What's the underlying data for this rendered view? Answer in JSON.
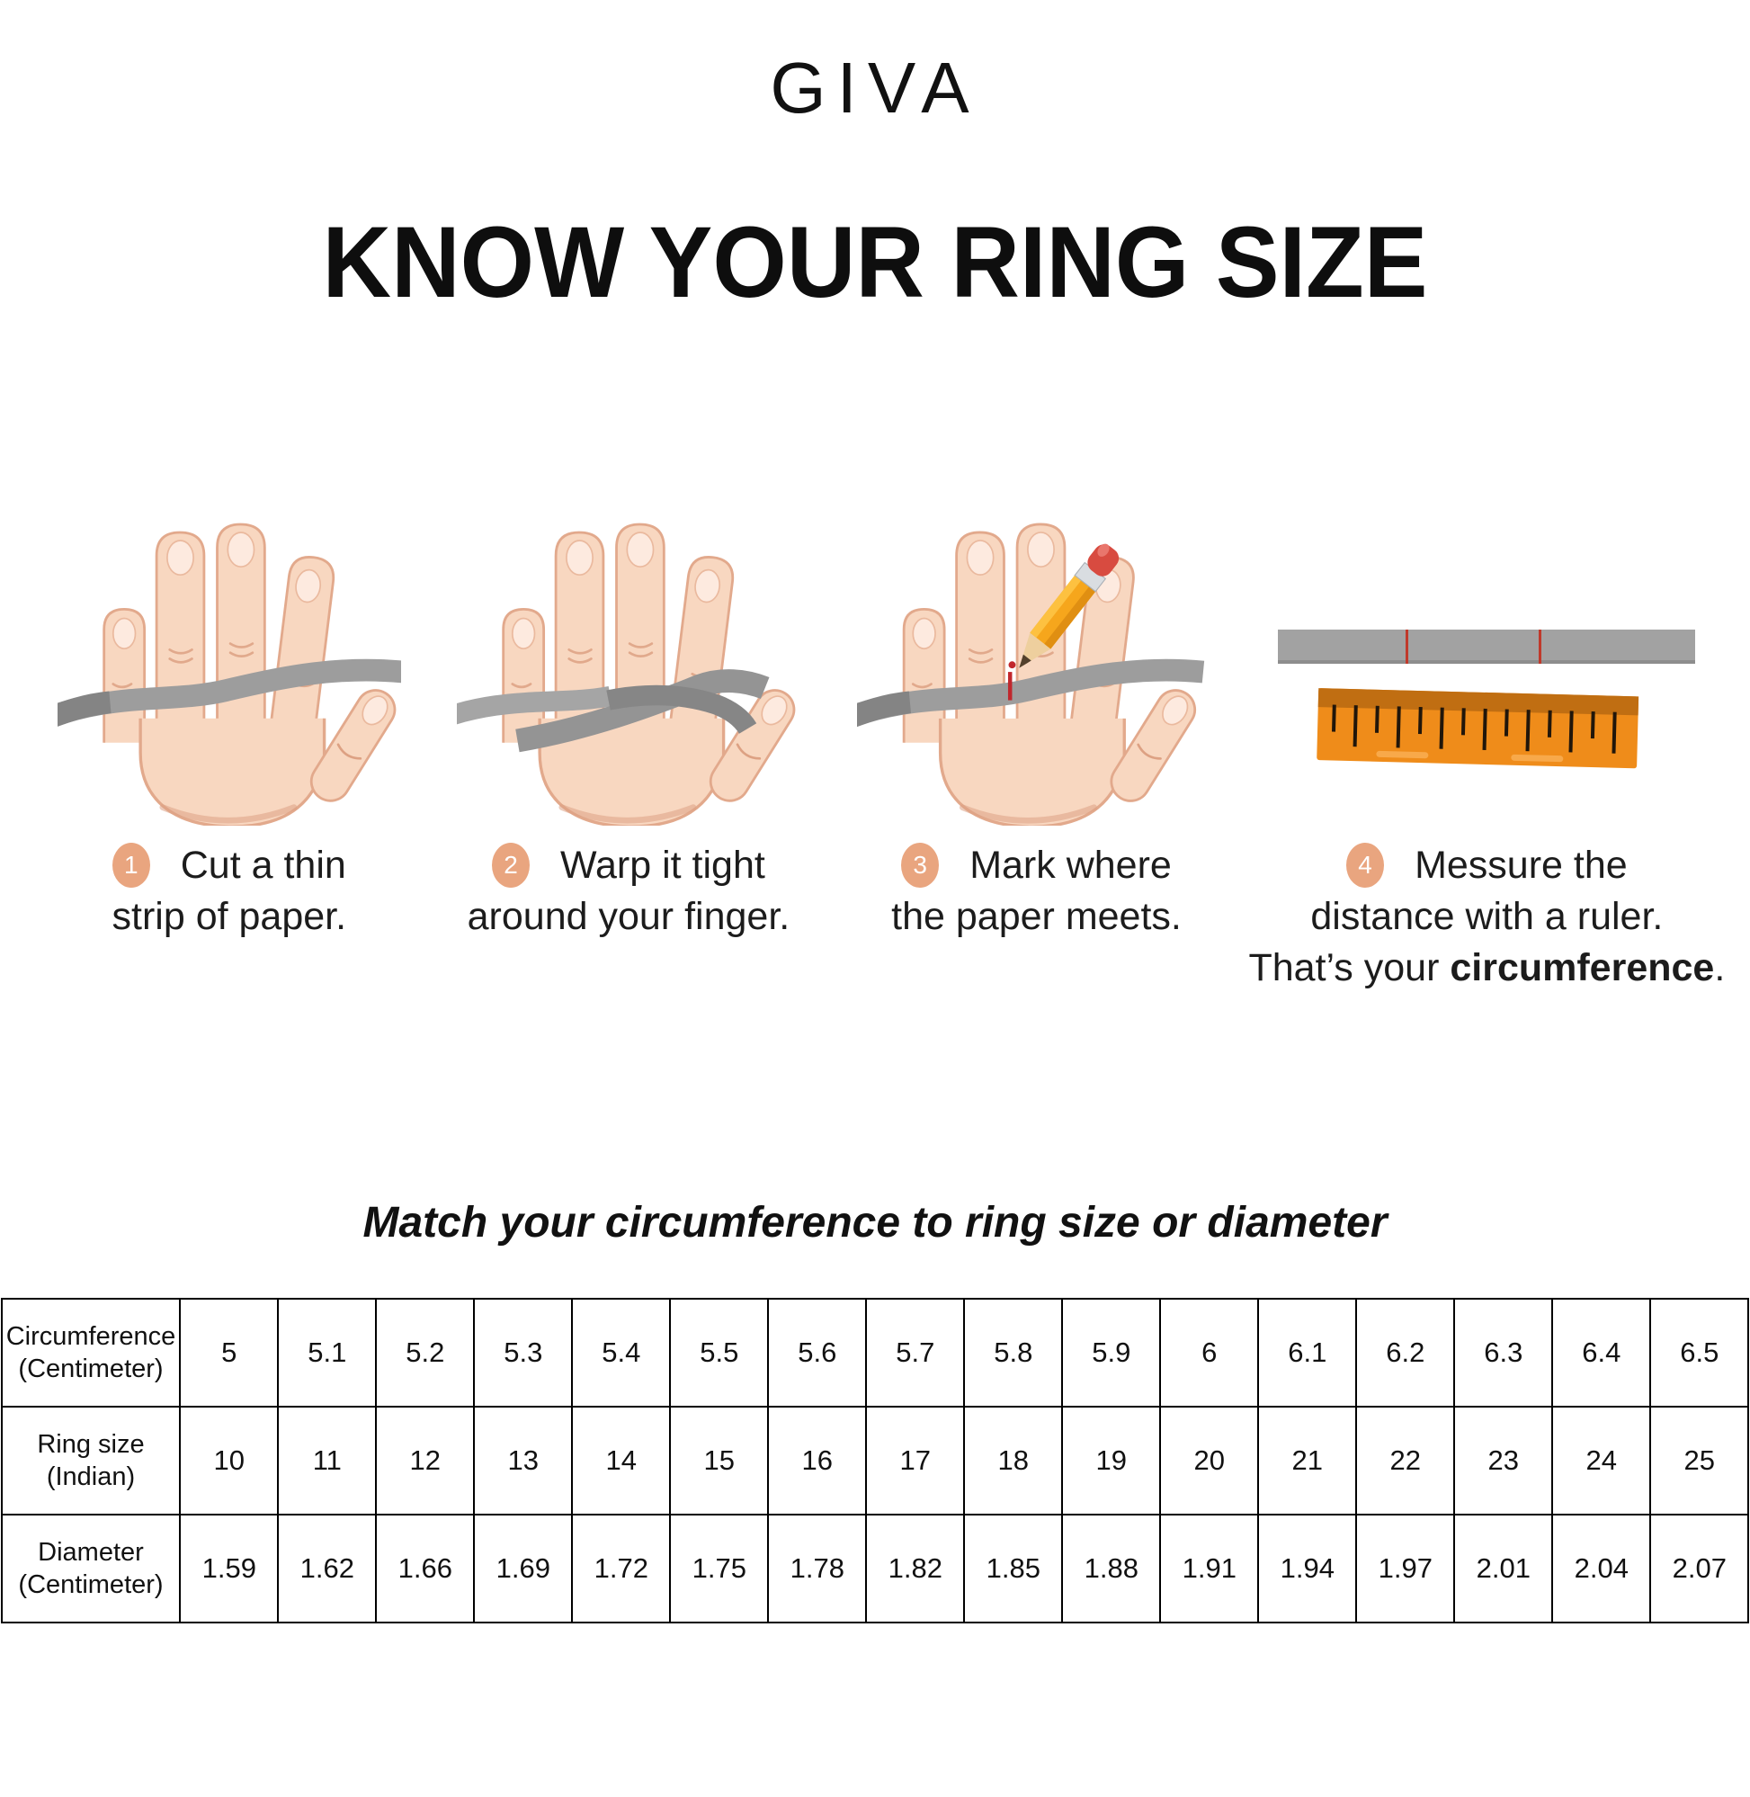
{
  "brand": {
    "logo": "GIVA"
  },
  "title": "KNOW YOUR RING SIZE",
  "steps": [
    {
      "number": "1",
      "line1": "Cut a thin",
      "line2": "strip of paper."
    },
    {
      "number": "2",
      "line1": "Warp it tight",
      "line2": "around your finger."
    },
    {
      "number": "3",
      "line1": "Mark where",
      "line2": "the paper meets."
    },
    {
      "number": "4",
      "line1": "Messure the",
      "line2": "distance with a ruler.",
      "line3_prefix": "That’s your ",
      "line3_bold": "circumference",
      "line3_suffix": "."
    }
  ],
  "match_heading": "Match your circumference to ring size or diameter",
  "chart_data": {
    "type": "table",
    "rows": [
      {
        "key": "circumference",
        "header": "Circumference (Centimeter)",
        "values": [
          "5",
          "5.1",
          "5.2",
          "5.3",
          "5.4",
          "5.5",
          "5.6",
          "5.7",
          "5.8",
          "5.9",
          "6",
          "6.1",
          "6.2",
          "6.3",
          "6.4",
          "6.5"
        ]
      },
      {
        "key": "ring_size",
        "header": "Ring size (Indian)",
        "values": [
          "10",
          "11",
          "12",
          "13",
          "14",
          "15",
          "16",
          "17",
          "18",
          "19",
          "20",
          "21",
          "22",
          "23",
          "24",
          "25"
        ]
      },
      {
        "key": "diameter",
        "header": "Diameter (Centimeter)",
        "values": [
          "1.59",
          "1.62",
          "1.66",
          "1.69",
          "1.72",
          "1.75",
          "1.78",
          "1.82",
          "1.85",
          "1.88",
          "1.91",
          "1.94",
          "1.97",
          "2.01",
          "2.04",
          "2.07"
        ]
      }
    ]
  },
  "icons": {
    "step1": "hand-with-paper-strip-icon",
    "step2": "hand-strip-wrapped-around-finger-icon",
    "step3": "hand-pencil-marking-icon",
    "step4": "paper-strip-and-ruler-icon"
  },
  "colors": {
    "badge_peach": "#e9a57f",
    "skin": "#f8d7c0",
    "skin_outline": "#e2a98c",
    "strip_gray": "#9d9d9d",
    "ruler_orange": "#ef8c1a",
    "ruler_band": "#c06e12",
    "mark_red": "#c1272d",
    "text": "#1a1a1a"
  }
}
